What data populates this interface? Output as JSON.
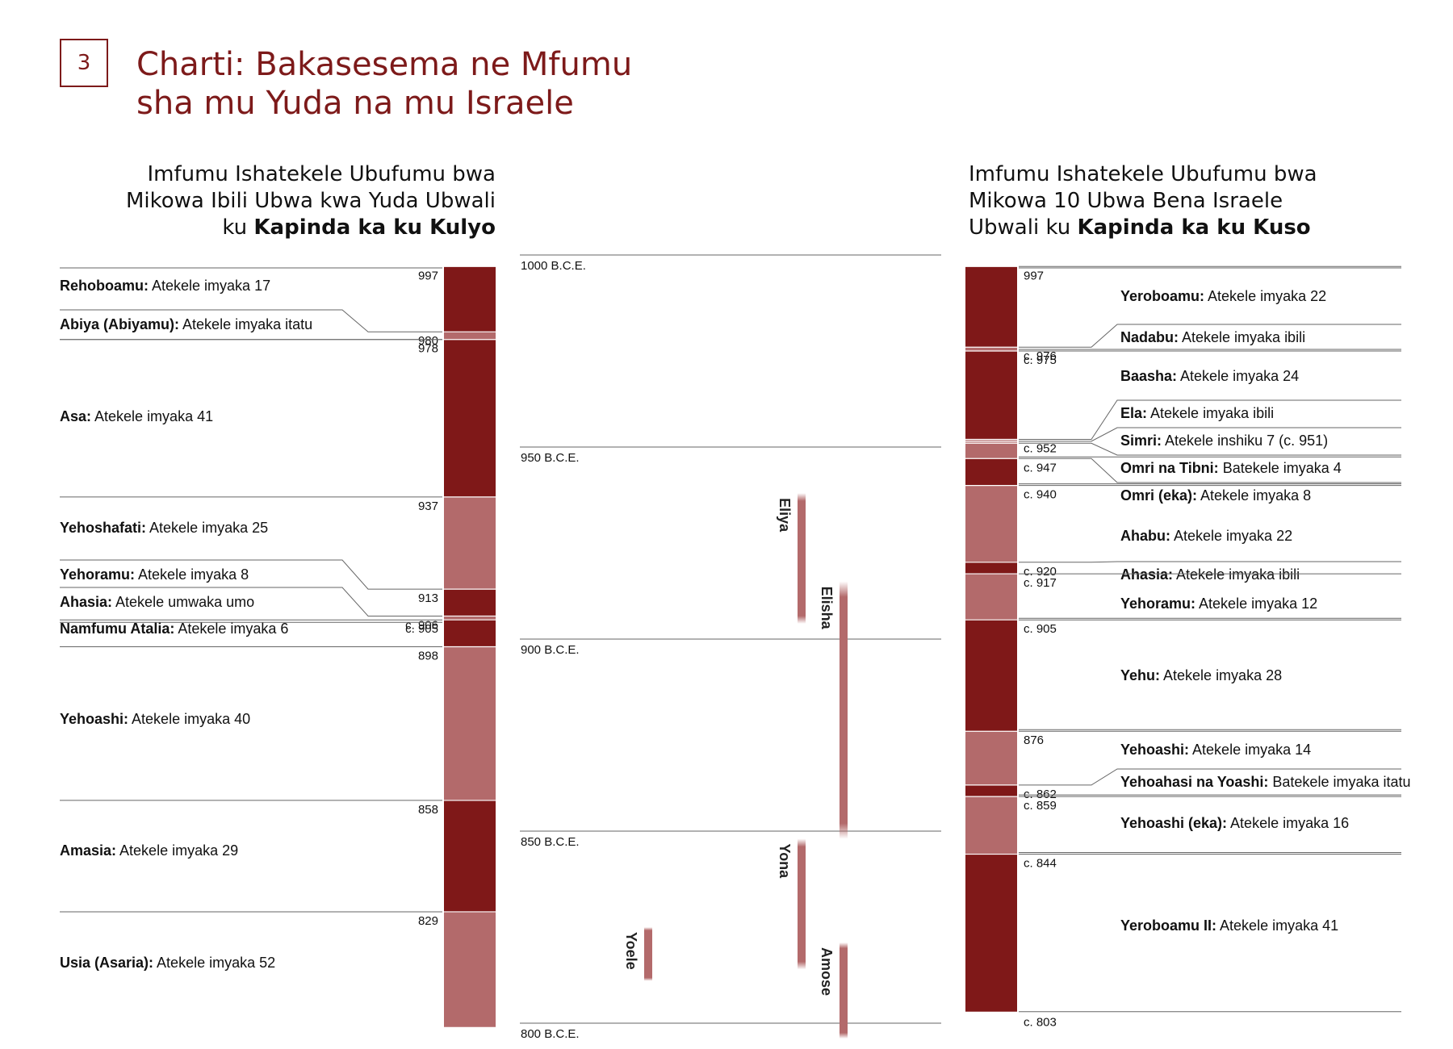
{
  "header": {
    "number": "3",
    "title_line1": "Charti: Bakasesema ne Mfumu",
    "title_line2": "sha mu Yuda na mu Israele"
  },
  "judah_heading": {
    "line1": "Imfumu Ishatekele Ubufumu bwa",
    "line2": "Mikowa Ibili Ubwa kwa Yuda Ubwali",
    "line3_prefix": "ku ",
    "line3_bold": "Kapinda ka ku Kulyo"
  },
  "israel_heading": {
    "line1": "Imfumu Ishatekele Ubufumu bwa",
    "line2": "Mikowa 10 Ubwa Bena Israele",
    "line3_prefix": "Ubwali ku ",
    "line3_bold": "Kapinda ka ku Kuso"
  },
  "colors": {
    "dark": "#7f1818",
    "light": "#b36a6b",
    "title": "#7d1a1a",
    "rule": "#666666"
  },
  "chart_data": {
    "type": "timeline",
    "axis": {
      "unit": "B.C.E.",
      "start": 1000,
      "end": 800,
      "ticks": [
        {
          "value": 1000,
          "label": "1000 B.C.E."
        },
        {
          "value": 950,
          "label": "950 B.C.E."
        },
        {
          "value": 900,
          "label": "900 B.C.E."
        },
        {
          "value": 850,
          "label": "850 B.C.E."
        },
        {
          "value": 800,
          "label": "800 B.C.E."
        }
      ]
    },
    "judah": [
      {
        "name": "Rehoboamu:",
        "desc": " Atekele imyaka 17",
        "start": 997,
        "end": 980,
        "start_label": "997",
        "end_label": "",
        "shade": "dark"
      },
      {
        "name": "Abiya (Abiyamu):",
        "desc": " Atekele imyaka itatu",
        "start": 980,
        "end": 978,
        "start_label": "980",
        "end_label": "",
        "shade": "light"
      },
      {
        "name": "Asa:",
        "desc": " Atekele imyaka 41",
        "start": 978,
        "end": 937,
        "start_label": "978",
        "end_label": "",
        "shade": "dark"
      },
      {
        "name": "Yehoshafati:",
        "desc": " Atekele imyaka 25",
        "start": 937,
        "end": 913,
        "start_label": "937",
        "end_label": "",
        "shade": "light"
      },
      {
        "name": "Yehoramu:",
        "desc": " Atekele imyaka 8",
        "start": 913,
        "end": 906,
        "start_label": "913",
        "end_label": "",
        "shade": "dark"
      },
      {
        "name": "Ahasia:",
        "desc": " Atekele umwaka umo",
        "start": 906,
        "end": 905,
        "start_label": "c. 906",
        "end_label": "",
        "shade": "light"
      },
      {
        "name": "Namfumu Atalia:",
        "desc": " Atekele imyaka 6",
        "start": 905,
        "end": 898,
        "start_label": "c. 905",
        "end_label": "",
        "shade": "dark"
      },
      {
        "name": "Yehoashi:",
        "desc": " Atekele imyaka 40",
        "start": 898,
        "end": 858,
        "start_label": "898",
        "end_label": "",
        "shade": "light"
      },
      {
        "name": "Amasia:",
        "desc": " Atekele imyaka 29",
        "start": 858,
        "end": 829,
        "start_label": "858",
        "end_label": "",
        "shade": "dark"
      },
      {
        "name": "Usia (Asaria):",
        "desc": " Atekele imyaka 52",
        "start": 829,
        "end": 799,
        "start_label": "829",
        "end_label": "",
        "shade": "light"
      }
    ],
    "israel": [
      {
        "name": "Yeroboamu:",
        "desc": " Atekele imyaka 22",
        "start": 997,
        "end": 976,
        "start_label": "997",
        "shade": "dark"
      },
      {
        "name": "Nadabu:",
        "desc": " Atekele imyaka ibili",
        "start": 976,
        "end": 975,
        "start_label": "c. 976",
        "shade": "light"
      },
      {
        "name": "Baasha:",
        "desc": " Atekele imyaka 24",
        "start": 975,
        "end": 952,
        "start_label": "c. 975",
        "shade": "dark"
      },
      {
        "name": "Ela:",
        "desc": " Atekele imyaka ibili",
        "start": 952,
        "end": 951.5,
        "start_label": "c. 952",
        "shade": "light"
      },
      {
        "name": "Simri:",
        "desc": " Atekele inshiku 7 (c. 951)",
        "start": 951.5,
        "end": 951,
        "start_label": "",
        "shade": "light"
      },
      {
        "name": "Omri na Tibni:",
        "desc": " Batekele imyaka 4",
        "start": 951,
        "end": 947,
        "start_label": "",
        "shade": "light"
      },
      {
        "name": "Omri (eka):",
        "desc": " Atekele imyaka 8",
        "start": 947,
        "end": 940,
        "start_label": "c. 947",
        "shade": "dark"
      },
      {
        "name": "Ahabu:",
        "desc": " Atekele imyaka 22",
        "start": 940,
        "end": 920,
        "start_label": "c. 940",
        "shade": "light"
      },
      {
        "name": "Ahasia:",
        "desc": " Atekele imyaka ibili",
        "start": 920,
        "end": 917,
        "start_label": "c. 920",
        "shade": "dark"
      },
      {
        "name": "Yehoramu:",
        "desc": " Atekele imyaka 12",
        "start": 917,
        "end": 905,
        "start_label": "c. 917",
        "shade": "light"
      },
      {
        "name": "Yehu:",
        "desc": " Atekele imyaka 28",
        "start": 905,
        "end": 876,
        "start_label": "c. 905",
        "shade": "dark"
      },
      {
        "name": "Yehoashi:",
        "desc": " Atekele imyaka 14",
        "start": 876,
        "end": 862,
        "start_label": "876",
        "shade": "light"
      },
      {
        "name": "Yehoahasi na Yoashi:",
        "desc": " Batekele imyaka itatu",
        "start": 862,
        "end": 859,
        "start_label": "c. 862",
        "shade": "dark"
      },
      {
        "name": "Yehoashi (eka):",
        "desc": " Atekele imyaka 16",
        "start": 859,
        "end": 844,
        "start_label": "c. 859",
        "shade": "light"
      },
      {
        "name": "Yeroboamu II:",
        "desc": " Atekele imyaka 41",
        "start": 844,
        "end": 803,
        "start_label": "c. 844",
        "shade": "dark"
      }
    ],
    "israel_end_label": "c. 803",
    "prophets": [
      {
        "name": "Eliya",
        "start": 938,
        "end": 904
      },
      {
        "name": "Elisha",
        "start": 915,
        "end": 848
      },
      {
        "name": "Yona",
        "start": 848,
        "end": 814
      },
      {
        "name": "Amose",
        "start": 821,
        "end": 796
      },
      {
        "name": "Yoele",
        "start": 825,
        "end": 811
      }
    ]
  }
}
